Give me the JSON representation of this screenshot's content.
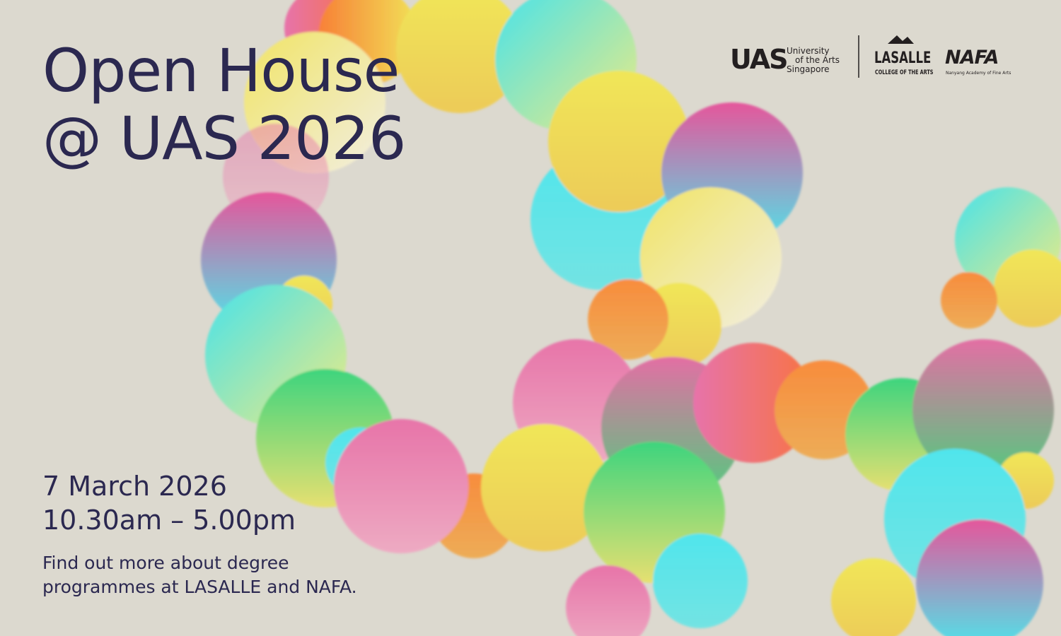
{
  "title": {
    "lines": [
      "Open House",
      "@ UAS 2026"
    ]
  },
  "event": {
    "date": "7 March 2026",
    "time": "10.30am – 5.00pm",
    "description": [
      "Find out more about degree",
      "programmes at LASALLE and NAFA."
    ]
  },
  "logos": {
    "uas": {
      "mark": "UAS",
      "name": [
        "University",
        "of the Arts",
        "Singapore"
      ]
    },
    "lasalle": {
      "mark": "LASALLE",
      "name": "COLLEGE OF THE ARTS"
    },
    "nafa": {
      "mark": "NAFA",
      "name": "Nanyang Academy of Fine Arts"
    }
  }
}
